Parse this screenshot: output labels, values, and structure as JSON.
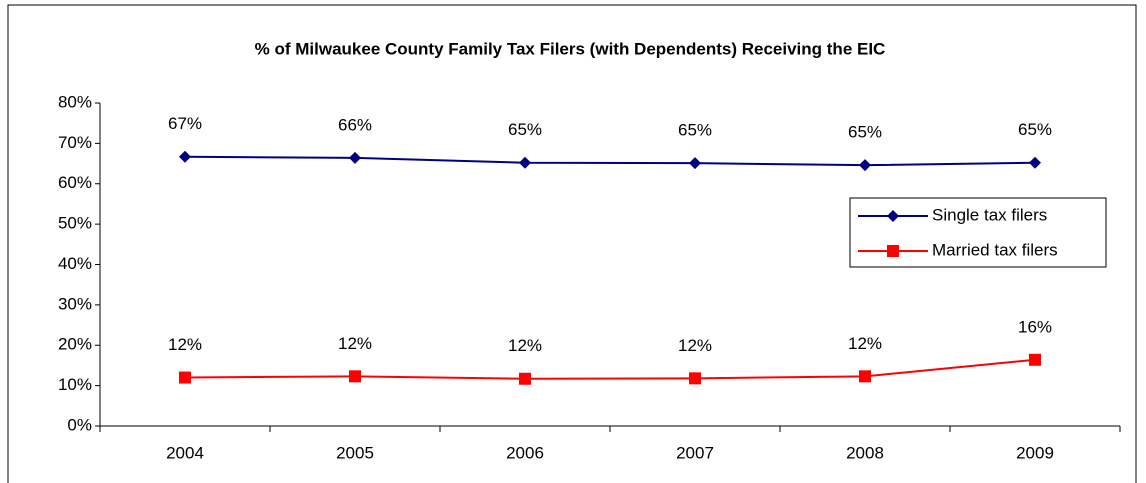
{
  "chart_data": {
    "type": "line",
    "title": "% of Milwaukee County Family Tax Filers (with Dependents) Receiving the EIC",
    "categories": [
      "2004",
      "2005",
      "2006",
      "2007",
      "2008",
      "2009"
    ],
    "series": [
      {
        "name": "Single tax filers",
        "color": "#000080",
        "marker": "diamond",
        "values": [
          66.7,
          66.4,
          65.2,
          65.1,
          64.6,
          65.2
        ],
        "value_labels": [
          "67%",
          "66%",
          "65%",
          "65%",
          "65%",
          "65%"
        ]
      },
      {
        "name": "Married tax filers",
        "color": "#ff0000",
        "marker": "square",
        "values": [
          12.0,
          12.3,
          11.7,
          11.8,
          12.3,
          16.4
        ],
        "value_labels": [
          "12%",
          "12%",
          "12%",
          "12%",
          "12%",
          "16%"
        ]
      }
    ],
    "ylim": [
      0,
      80
    ],
    "yticks": [
      {
        "value": 0,
        "label": "0%"
      },
      {
        "value": 10,
        "label": "10%"
      },
      {
        "value": 20,
        "label": "20%"
      },
      {
        "value": 30,
        "label": "30%"
      },
      {
        "value": 40,
        "label": "40%"
      },
      {
        "value": 50,
        "label": "50%"
      },
      {
        "value": 60,
        "label": "60%"
      },
      {
        "value": 70,
        "label": "70%"
      },
      {
        "value": 80,
        "label": "80%"
      }
    ],
    "grid": false,
    "legend": "right"
  }
}
